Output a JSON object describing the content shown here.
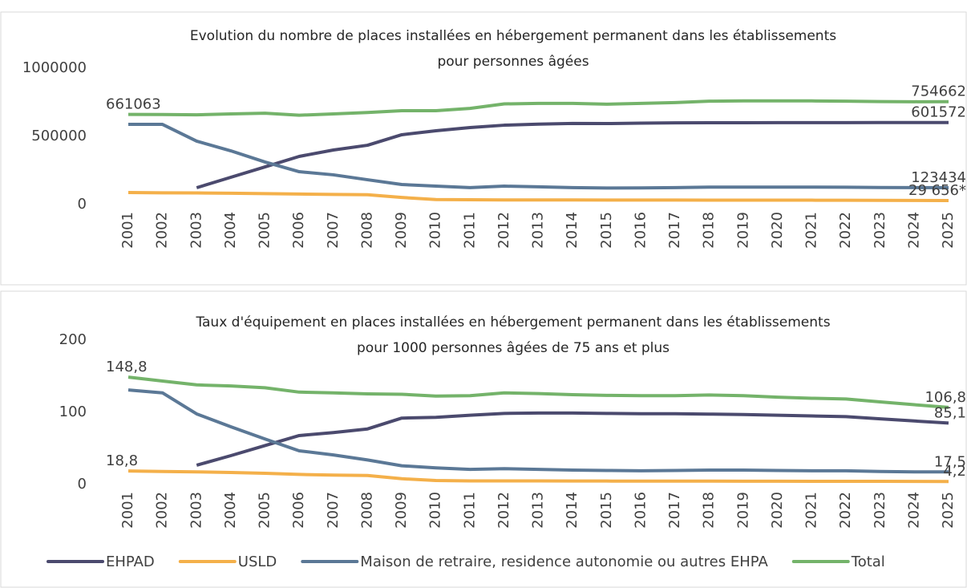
{
  "chart_data": [
    {
      "type": "line",
      "title": [
        "Evolution du nombre de places installées en hébergement permanent dans les établissements",
        "pour personnes âgées"
      ],
      "categories": [
        "2001",
        "2002",
        "2003",
        "2004",
        "2005",
        "2006",
        "2007",
        "2008",
        "2009",
        "2010",
        "2011",
        "2012",
        "2013",
        "2014",
        "2015",
        "2016",
        "2017",
        "2018",
        "2019",
        "2020",
        "2021",
        "2022",
        "2023",
        "2024",
        "2025"
      ],
      "ylim": [
        0,
        1000000
      ],
      "yticks": [
        0,
        500000,
        1000000
      ],
      "series": [
        {
          "color": "#4b4a6e",
          "values": [
            null,
            null,
            123500,
            200000,
            276000,
            353000,
            400000,
            435000,
            512000,
            541000,
            565000,
            582000,
            590000,
            595000,
            594000,
            597000,
            599000,
            600000,
            600000,
            600500,
            601000,
            601000,
            601200,
            601400,
            601572
          ],
          "value_labels": [
            null,
            null,
            null,
            null,
            null,
            null,
            null,
            null,
            null,
            null,
            null,
            null,
            null,
            null,
            null,
            null,
            null,
            null,
            null,
            null,
            null,
            null,
            null,
            null,
            "601572"
          ]
        },
        {
          "color": "#f4b04a",
          "values": [
            88000,
            86000,
            85000,
            83000,
            80000,
            77000,
            74000,
            72000,
            52000,
            37000,
            35000,
            34000,
            34000,
            33500,
            33000,
            33000,
            33000,
            32500,
            32500,
            32000,
            32000,
            31500,
            31000,
            30500,
            29656
          ],
          "value_labels": [
            null,
            null,
            null,
            null,
            null,
            null,
            null,
            null,
            null,
            null,
            null,
            null,
            null,
            null,
            null,
            null,
            null,
            null,
            null,
            null,
            null,
            null,
            null,
            null,
            "29 656*"
          ]
        },
        {
          "color": "#5b7896",
          "values": [
            588000,
            588000,
            465000,
            394000,
            312000,
            241000,
            218000,
            182000,
            147000,
            135000,
            124000,
            135000,
            130000,
            124000,
            121000,
            122000,
            124000,
            128000,
            128000,
            128000,
            128000,
            127000,
            125000,
            124000,
            123434
          ],
          "value_labels": [
            null,
            null,
            null,
            null,
            null,
            null,
            null,
            null,
            null,
            null,
            null,
            null,
            null,
            null,
            null,
            null,
            null,
            null,
            null,
            null,
            null,
            null,
            null,
            null,
            "123434"
          ]
        },
        {
          "color": "#74b36a",
          "values": [
            661063,
            660000,
            658000,
            665000,
            670000,
            655000,
            665000,
            675000,
            688000,
            688000,
            705000,
            738000,
            742000,
            742000,
            736000,
            742000,
            748000,
            758000,
            760000,
            760000,
            760000,
            758000,
            755000,
            754000,
            754662
          ],
          "value_labels": [
            "661063",
            null,
            null,
            null,
            null,
            null,
            null,
            null,
            null,
            null,
            null,
            null,
            null,
            null,
            null,
            null,
            null,
            null,
            null,
            null,
            null,
            null,
            null,
            null,
            "754662"
          ]
        }
      ]
    },
    {
      "type": "line",
      "title": [
        "Taux d'équipement en places installées en hébergement permanent dans les établissements",
        "pour 1000 personnes âgées de 75 ans et plus"
      ],
      "categories": [
        "2001",
        "2002",
        "2003",
        "2004",
        "2005",
        "2006",
        "2007",
        "2008",
        "2009",
        "2010",
        "2011",
        "2012",
        "2013",
        "2014",
        "2015",
        "2016",
        "2017",
        "2018",
        "2019",
        "2020",
        "2021",
        "2022",
        "2023",
        "2024",
        "2025"
      ],
      "ylim": [
        0,
        200
      ],
      "yticks": [
        0,
        100,
        200
      ],
      "series": [
        {
          "name": "EHPAD",
          "color": "#4b4a6e",
          "values": [
            null,
            null,
            26.7,
            40,
            54,
            67.8,
            72,
            77,
            92,
            93,
            96,
            98.5,
            99,
            99,
            98.5,
            98,
            98,
            97.5,
            97,
            96,
            95,
            94,
            91,
            88,
            85.1
          ],
          "value_labels": [
            null,
            null,
            null,
            null,
            null,
            null,
            null,
            null,
            null,
            null,
            null,
            null,
            null,
            null,
            null,
            null,
            null,
            null,
            null,
            null,
            null,
            null,
            null,
            null,
            "85,1"
          ]
        },
        {
          "name": "USLD",
          "color": "#f4b04a",
          "values": [
            18.8,
            18,
            17.5,
            16.7,
            15.5,
            14,
            13,
            12.5,
            8,
            5.5,
            5,
            5,
            5,
            4.8,
            4.8,
            4.7,
            4.7,
            4.7,
            4.6,
            4.6,
            4.5,
            4.5,
            4.4,
            4.3,
            4.2
          ],
          "value_labels": [
            "18,8",
            null,
            null,
            null,
            null,
            null,
            null,
            null,
            null,
            null,
            null,
            null,
            null,
            null,
            null,
            null,
            null,
            null,
            null,
            null,
            null,
            null,
            null,
            null,
            "4,2"
          ]
        },
        {
          "name": "Maison de retraire, residence autonomie ou autres EHPA",
          "color": "#5b7896",
          "values": [
            131,
            127,
            97.8,
            80,
            63,
            46.7,
            41,
            34,
            26,
            23,
            21,
            22,
            21,
            20,
            19.5,
            19,
            19.5,
            20,
            20,
            19.5,
            19,
            19,
            18,
            17.5,
            17.5
          ],
          "value_labels": [
            null,
            null,
            null,
            null,
            null,
            null,
            null,
            null,
            null,
            null,
            null,
            null,
            null,
            null,
            null,
            null,
            null,
            null,
            null,
            null,
            null,
            null,
            null,
            null,
            "17,5"
          ]
        },
        {
          "name": "Total",
          "color": "#74b36a",
          "values": [
            148.8,
            143.3,
            138,
            136.5,
            134,
            128,
            127,
            125.5,
            125,
            122.5,
            123,
            127,
            126,
            124.5,
            123.5,
            123,
            123,
            124,
            123,
            121,
            119.5,
            118.5,
            114.5,
            110.5,
            106.8
          ],
          "value_labels": [
            "148,8",
            null,
            null,
            null,
            null,
            null,
            null,
            null,
            null,
            null,
            null,
            null,
            null,
            null,
            null,
            null,
            null,
            null,
            null,
            null,
            null,
            null,
            null,
            null,
            "106,8"
          ]
        }
      ]
    }
  ]
}
